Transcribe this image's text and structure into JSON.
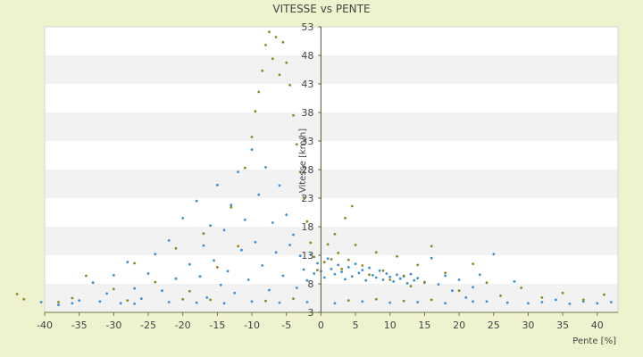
{
  "chart_data": {
    "type": "scatter",
    "title": "VITESSE vs PENTE",
    "xlabel": "Pente [%]",
    "ylabel": "Vitesse [km/h]",
    "xlim": [
      -40,
      43
    ],
    "ylim": [
      3,
      53
    ],
    "x_ticks": [
      "-40",
      "-35",
      "-30",
      "-25",
      "-20",
      "-15",
      "-10",
      "-5",
      "0",
      "5",
      "10",
      "15",
      "20",
      "25",
      "30",
      "35",
      "40"
    ],
    "y_ticks": [
      "3",
      "8",
      "13",
      "18",
      "23",
      "28",
      "33",
      "38",
      "43",
      "48",
      "53"
    ],
    "grid": "horizontal bands",
    "legend": "none",
    "series": [
      {
        "color": "#3a8fd6",
        "points": [
          [
            -40.5,
            4.8
          ],
          [
            -38,
            4.3
          ],
          [
            -35,
            5.1
          ],
          [
            -33,
            8.2
          ],
          [
            -31,
            6.3
          ],
          [
            -30,
            9.5
          ],
          [
            -29,
            4.6
          ],
          [
            -28,
            11.8
          ],
          [
            -27,
            7.2
          ],
          [
            -26,
            5.4
          ],
          [
            -25,
            9.8
          ],
          [
            -24,
            13.2
          ],
          [
            -23,
            6.8
          ],
          [
            -22,
            15.6
          ],
          [
            -21,
            8.9
          ],
          [
            -20,
            19.5
          ],
          [
            -19,
            11.4
          ],
          [
            -18,
            22.5
          ],
          [
            -17.5,
            9.3
          ],
          [
            -17,
            14.7
          ],
          [
            -16.5,
            5.6
          ],
          [
            -16,
            18.2
          ],
          [
            -15.5,
            12.1
          ],
          [
            -15,
            25.3
          ],
          [
            -14.5,
            7.8
          ],
          [
            -14,
            17.4
          ],
          [
            -13.5,
            10.2
          ],
          [
            -13,
            21.8
          ],
          [
            -12.5,
            6.4
          ],
          [
            -12,
            27.6
          ],
          [
            -11.5,
            13.9
          ],
          [
            -11,
            19.2
          ],
          [
            -10.5,
            8.7
          ],
          [
            -10,
            31.5
          ],
          [
            -9.5,
            15.3
          ],
          [
            -9,
            23.6
          ],
          [
            -8.5,
            11.2
          ],
          [
            -8,
            28.4
          ],
          [
            -7.5,
            6.9
          ],
          [
            -7,
            18.7
          ],
          [
            -6.5,
            13.5
          ],
          [
            -6,
            25.2
          ],
          [
            -5.5,
            9.4
          ],
          [
            -5,
            20.1
          ],
          [
            -4.5,
            14.8
          ],
          [
            -4,
            16.6
          ],
          [
            -3.5,
            7.3
          ],
          [
            -3,
            12.9
          ],
          [
            -2.5,
            10.5
          ],
          [
            -2,
            8.6
          ],
          [
            -1.5,
            13.1
          ],
          [
            -1,
            9.8
          ],
          [
            -0.5,
            11.6
          ],
          [
            0,
            10.2
          ],
          [
            0.5,
            9.1
          ],
          [
            1,
            12.4
          ],
          [
            1.5,
            10.6
          ],
          [
            2,
            9.7
          ],
          [
            2.5,
            11.3
          ],
          [
            3,
            10.1
          ],
          [
            3.5,
            8.8
          ],
          [
            4,
            10.9
          ],
          [
            4.5,
            9.3
          ],
          [
            5,
            11.5
          ],
          [
            5.5,
            9.9
          ],
          [
            6,
            10.4
          ],
          [
            6.5,
            8.6
          ],
          [
            7,
            10.8
          ],
          [
            7.5,
            9.5
          ],
          [
            8,
            9.1
          ],
          [
            8.5,
            10.3
          ],
          [
            9,
            8.7
          ],
          [
            9.5,
            9.8
          ],
          [
            10,
            9.2
          ],
          [
            10.5,
            8.4
          ],
          [
            11,
            9.6
          ],
          [
            11.5,
            8.9
          ],
          [
            12,
            9.3
          ],
          [
            12.5,
            8.1
          ],
          [
            13,
            9.7
          ],
          [
            13.5,
            8.6
          ],
          [
            14,
            9.0
          ],
          [
            15,
            8.3
          ],
          [
            16,
            12.5
          ],
          [
            17,
            7.9
          ],
          [
            18,
            9.4
          ],
          [
            19,
            6.8
          ],
          [
            20,
            8.7
          ],
          [
            21,
            5.6
          ],
          [
            22,
            7.4
          ],
          [
            23,
            9.6
          ],
          [
            24,
            4.9
          ],
          [
            25,
            13.2
          ],
          [
            27,
            4.7
          ],
          [
            28,
            8.4
          ],
          [
            30,
            4.6
          ],
          [
            32,
            4.8
          ],
          [
            34,
            5.2
          ],
          [
            36,
            4.5
          ],
          [
            38,
            4.9
          ],
          [
            40,
            4.6
          ],
          [
            42,
            4.8
          ],
          [
            -36,
            4.6
          ],
          [
            -32,
            4.9
          ],
          [
            -27,
            4.5
          ],
          [
            -22,
            4.8
          ],
          [
            -18,
            4.7
          ],
          [
            -14,
            4.6
          ],
          [
            -10,
            4.9
          ],
          [
            -6,
            4.7
          ],
          [
            -2,
            4.8
          ],
          [
            2,
            4.6
          ],
          [
            6,
            4.9
          ],
          [
            10,
            4.7
          ],
          [
            14,
            4.8
          ],
          [
            18,
            4.6
          ],
          [
            22,
            4.9
          ]
        ]
      },
      {
        "color": "#8a8a1c",
        "points": [
          [
            -44,
            6.2
          ],
          [
            -43,
            5.3
          ],
          [
            -38,
            4.8
          ],
          [
            -34,
            9.4
          ],
          [
            -30,
            7.1
          ],
          [
            -27,
            11.6
          ],
          [
            -24,
            8.3
          ],
          [
            -21,
            14.2
          ],
          [
            -19,
            6.7
          ],
          [
            -17,
            16.8
          ],
          [
            -15,
            10.9
          ],
          [
            -13,
            21.4
          ],
          [
            -12,
            14.6
          ],
          [
            -11,
            28.3
          ],
          [
            -10,
            33.7
          ],
          [
            -9.5,
            38.2
          ],
          [
            -9,
            41.6
          ],
          [
            -8.5,
            45.3
          ],
          [
            -8,
            49.8
          ],
          [
            -7.5,
            52.1
          ],
          [
            -7,
            47.4
          ],
          [
            -6.5,
            51.2
          ],
          [
            -6,
            44.6
          ],
          [
            -5.5,
            50.3
          ],
          [
            -5,
            46.7
          ],
          [
            -4.5,
            42.8
          ],
          [
            -4,
            37.5
          ],
          [
            -3.5,
            32.4
          ],
          [
            -3,
            27.6
          ],
          [
            -2.5,
            23.1
          ],
          [
            -2,
            18.9
          ],
          [
            -1.5,
            15.2
          ],
          [
            -1,
            12.7
          ],
          [
            -0.5,
            10.4
          ],
          [
            0.5,
            11.8
          ],
          [
            1,
            14.9
          ],
          [
            1.5,
            12.3
          ],
          [
            2,
            16.7
          ],
          [
            2.5,
            13.4
          ],
          [
            3,
            10.6
          ],
          [
            3.5,
            19.5
          ],
          [
            4,
            12.2
          ],
          [
            4.5,
            21.6
          ],
          [
            5,
            14.8
          ],
          [
            6,
            11.2
          ],
          [
            7,
            9.6
          ],
          [
            8,
            13.5
          ],
          [
            9,
            10.3
          ],
          [
            10,
            8.7
          ],
          [
            11,
            12.8
          ],
          [
            12,
            9.4
          ],
          [
            13,
            7.6
          ],
          [
            14,
            11.3
          ],
          [
            15,
            8.2
          ],
          [
            16,
            14.6
          ],
          [
            18,
            9.9
          ],
          [
            20,
            6.8
          ],
          [
            22,
            11.5
          ],
          [
            24,
            8.2
          ],
          [
            26,
            5.9
          ],
          [
            29,
            7.3
          ],
          [
            32,
            5.6
          ],
          [
            35,
            6.4
          ],
          [
            38,
            5.2
          ],
          [
            41,
            6.1
          ],
          [
            -36,
            5.5
          ],
          [
            -28,
            5.1
          ],
          [
            -20,
            5.3
          ],
          [
            -16,
            5.2
          ],
          [
            -8,
            5.0
          ],
          [
            -4,
            5.4
          ],
          [
            4,
            5.1
          ],
          [
            8,
            5.3
          ],
          [
            12,
            5.0
          ],
          [
            16,
            5.2
          ]
        ]
      }
    ]
  }
}
